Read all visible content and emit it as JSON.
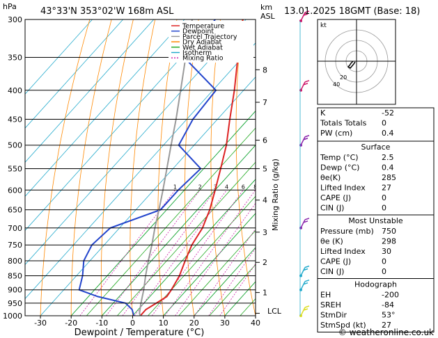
{
  "header": {
    "hpa_unit": "hPa",
    "location": "43°33'N  353°02'W  168m  ASL",
    "km_label": "km",
    "asl_label": "ASL",
    "datetime": "13.01.2025  18GMT  (Base: 18)"
  },
  "legend": [
    {
      "label": "Temperature",
      "color": "#dd2222",
      "dash": ""
    },
    {
      "label": "Dewpoint",
      "color": "#2244cc",
      "dash": ""
    },
    {
      "label": "Parcel Trajectory",
      "color": "#999999",
      "dash": ""
    },
    {
      "label": "Dry Adiabat",
      "color": "#ff8800",
      "dash": ""
    },
    {
      "label": "Wet Adiabat",
      "color": "#22aa22",
      "dash": ""
    },
    {
      "label": "Isotherm",
      "color": "#22aacc",
      "dash": ""
    },
    {
      "label": "Mixing Ratio",
      "color": "#cc22aa",
      "dash": "2,2"
    }
  ],
  "axes": {
    "xlabel": "Dewpoint / Temperature (°C)",
    "ylabel_right": "Mixing Ratio (g/kg)",
    "lcl_label": "LCL"
  },
  "chart_data": {
    "type": "line",
    "title": "43°33'N  353°02'W  168m  ASL",
    "xlabel": "Dewpoint / Temperature (°C)",
    "ylabel": "hPa",
    "xlim": [
      -35,
      40
    ],
    "ylim": [
      1000,
      300
    ],
    "pressure_ticks": [
      300,
      350,
      400,
      450,
      500,
      550,
      600,
      650,
      700,
      750,
      800,
      850,
      900,
      950,
      1000
    ],
    "temp_ticks": [
      -30,
      -20,
      -10,
      0,
      10,
      20,
      30,
      40
    ],
    "height_km_ticks": [
      {
        "km": "8",
        "p": 368
      },
      {
        "km": "7",
        "p": 420
      },
      {
        "km": "6",
        "p": 490
      },
      {
        "km": "5",
        "p": 550
      },
      {
        "km": "4",
        "p": 625
      },
      {
        "km": "3",
        "p": 712
      },
      {
        "km": "2",
        "p": 805
      },
      {
        "km": "1",
        "p": 910
      }
    ],
    "lcl_p": 990,
    "mixing_ratio_labels": [
      "1",
      "2",
      "3",
      "4",
      "6",
      "8",
      "10",
      "15",
      "20",
      "25"
    ],
    "mixing_ratio_values": [
      1,
      2,
      3,
      4,
      6,
      8,
      10,
      15,
      20,
      25
    ],
    "series": [
      {
        "name": "Temperature",
        "color": "#dd2222",
        "points": [
          [
            1000,
            2.5
          ],
          [
            975,
            2.5
          ],
          [
            950,
            4.0
          ],
          [
            925,
            5.5
          ],
          [
            900,
            5.0
          ],
          [
            850,
            3.5
          ],
          [
            800,
            1.0
          ],
          [
            750,
            -1.5
          ],
          [
            700,
            -3.0
          ],
          [
            650,
            -6.0
          ],
          [
            600,
            -10.0
          ],
          [
            550,
            -14.5
          ],
          [
            500,
            -19.5
          ],
          [
            450,
            -26.0
          ],
          [
            400,
            -33.0
          ],
          [
            350,
            -41.5
          ],
          [
            300,
            -51.0
          ]
        ]
      },
      {
        "name": "Dewpoint",
        "color": "#2244cc",
        "points": [
          [
            1000,
            0.4
          ],
          [
            975,
            -2.0
          ],
          [
            950,
            -6.0
          ],
          [
            925,
            -17.0
          ],
          [
            900,
            -25.0
          ],
          [
            850,
            -28.0
          ],
          [
            800,
            -32.0
          ],
          [
            750,
            -34.0
          ],
          [
            700,
            -33.0
          ],
          [
            650,
            -22.0
          ],
          [
            600,
            -22.0
          ],
          [
            550,
            -21.0
          ],
          [
            500,
            -35.0
          ],
          [
            450,
            -38.0
          ],
          [
            400,
            -39.0
          ],
          [
            350,
            -59.0
          ],
          [
            300,
            -60.0
          ]
        ]
      },
      {
        "name": "Parcel Trajectory",
        "color": "#999999",
        "points": [
          [
            1000,
            2.5
          ],
          [
            990,
            1.5
          ],
          [
            950,
            -1.0
          ],
          [
            900,
            -4.0
          ],
          [
            850,
            -7.5
          ],
          [
            800,
            -11.0
          ],
          [
            750,
            -14.5
          ],
          [
            700,
            -18.5
          ],
          [
            650,
            -22.5
          ],
          [
            600,
            -27.0
          ],
          [
            550,
            -32.0
          ],
          [
            500,
            -37.5
          ],
          [
            450,
            -43.5
          ],
          [
            400,
            -50.5
          ],
          [
            350,
            -58.5
          ],
          [
            300,
            -67.5
          ]
        ]
      }
    ]
  },
  "indices": [
    {
      "label": "K",
      "value": "-52"
    },
    {
      "label": "Totals Totals",
      "value": "0"
    },
    {
      "label": "PW (cm)",
      "value": "0.4"
    }
  ],
  "surface": {
    "title": "Surface",
    "rows": [
      {
        "label": "Temp (°C)",
        "value": "2.5"
      },
      {
        "label": "Dewp (°C)",
        "value": "0.4"
      },
      {
        "label": "θe(K)",
        "value": "285"
      },
      {
        "label": "Lifted Index",
        "value": "27"
      },
      {
        "label": "CAPE (J)",
        "value": "0"
      },
      {
        "label": "CIN (J)",
        "value": "0"
      }
    ]
  },
  "unstable": {
    "title": "Most Unstable",
    "rows": [
      {
        "label": "Pressure (mb)",
        "value": "750"
      },
      {
        "label": "θe (K)",
        "value": "298"
      },
      {
        "label": "Lifted Index",
        "value": "30"
      },
      {
        "label": "CAPE (J)",
        "value": "0"
      },
      {
        "label": "CIN (J)",
        "value": "0"
      }
    ]
  },
  "hodograph_table": {
    "title": "Hodograph",
    "rows": [
      {
        "label": "EH",
        "value": "-200"
      },
      {
        "label": "SREH",
        "value": "-84"
      },
      {
        "label": "StmDir",
        "value": "53°"
      },
      {
        "label": "StmSpd (kt)",
        "value": "27"
      }
    ]
  },
  "hodograph": {
    "unit": "kt",
    "ring_labels": [
      "20",
      "40"
    ],
    "trace": [
      [
        -5,
        0
      ],
      [
        -8,
        -3
      ],
      [
        -10,
        -6
      ],
      [
        -12,
        -8
      ],
      [
        -9,
        -10
      ],
      [
        -4,
        -4
      ],
      [
        -2,
        -1
      ]
    ]
  },
  "wind_barbs": [
    {
      "p": 300,
      "color": "#cc1166"
    },
    {
      "p": 400,
      "color": "#cc1166"
    },
    {
      "p": 500,
      "color": "#8822aa"
    },
    {
      "p": 700,
      "color": "#8822aa"
    },
    {
      "p": 850,
      "color": "#22aacc"
    },
    {
      "p": 900,
      "color": "#22aacc"
    },
    {
      "p": 1000,
      "color": "#dddd22"
    }
  ],
  "copyright": "© weatheronline.co.uk"
}
